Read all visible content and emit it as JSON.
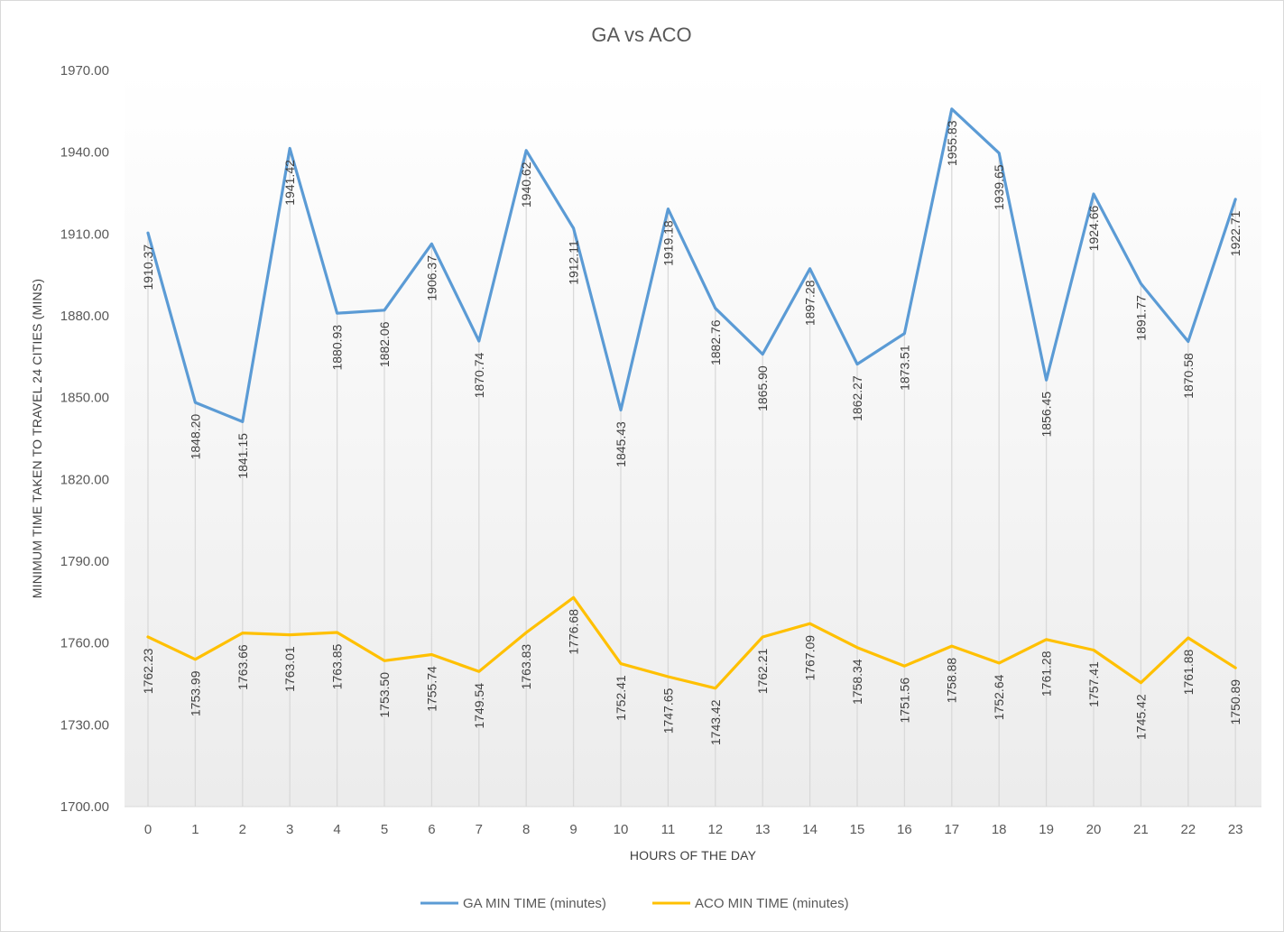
{
  "chart_data": {
    "type": "line",
    "title": "GA vs ACO",
    "xlabel": "HOURS OF THE DAY",
    "ylabel": "MINIMUM TIME TAKEN TO TRAVEL 24 CITIES (MINS)",
    "categories": [
      "0",
      "1",
      "2",
      "3",
      "4",
      "5",
      "6",
      "7",
      "8",
      "9",
      "10",
      "11",
      "12",
      "13",
      "14",
      "15",
      "16",
      "17",
      "18",
      "19",
      "20",
      "21",
      "22",
      "23"
    ],
    "ylim": [
      1700,
      1970
    ],
    "yticks": [
      "1970.00",
      "1940.00",
      "1910.00",
      "1880.00",
      "1850.00",
      "1820.00",
      "1790.00",
      "1760.00",
      "1730.00",
      "1700.00"
    ],
    "ytick_values": [
      1970,
      1940,
      1910,
      1880,
      1850,
      1820,
      1790,
      1760,
      1730,
      1700
    ],
    "grid": "drop lines",
    "legend": "bottom",
    "series": [
      {
        "name": "GA MIN TIME (minutes)",
        "color": "#5B9BD5",
        "values": [
          1910.37,
          1848.2,
          1841.15,
          1941.42,
          1880.93,
          1882.06,
          1906.37,
          1870.74,
          1940.62,
          1912.11,
          1845.43,
          1919.18,
          1882.76,
          1865.9,
          1897.28,
          1862.27,
          1873.51,
          1955.83,
          1939.65,
          1856.45,
          1924.66,
          1891.77,
          1870.58,
          1922.71
        ],
        "labels": [
          "1910.37",
          "1848.20",
          "1841.15",
          "1941.42",
          "1880.93",
          "1882.06",
          "1906.37",
          "1870.74",
          "1940.62",
          "1912.11",
          "1845.43",
          "1919.18",
          "1882.76",
          "1865.90",
          "1897.28",
          "1862.27",
          "1873.51",
          "1955.83",
          "1939.65",
          "1856.45",
          "1924.66",
          "1891.77",
          "1870.58",
          "1922.71"
        ]
      },
      {
        "name": "ACO MIN TIME (minutes)",
        "color": "#FFC000",
        "values": [
          1762.23,
          1753.99,
          1763.66,
          1763.01,
          1763.85,
          1753.5,
          1755.74,
          1749.54,
          1763.83,
          1776.68,
          1752.41,
          1747.65,
          1743.42,
          1762.21,
          1767.09,
          1758.34,
          1751.56,
          1758.88,
          1752.64,
          1761.28,
          1757.41,
          1745.42,
          1761.88,
          1750.89
        ],
        "labels": [
          "1762.23",
          "1753.99",
          "1763.66",
          "1763.01",
          "1763.85",
          "1753.50",
          "1755.74",
          "1749.54",
          "1763.83",
          "1776.68",
          "1752.41",
          "1747.65",
          "1743.42",
          "1762.21",
          "1767.09",
          "1758.34",
          "1751.56",
          "1758.88",
          "1752.64",
          "1761.28",
          "1757.41",
          "1745.42",
          "1761.88",
          "1750.89"
        ]
      }
    ]
  }
}
